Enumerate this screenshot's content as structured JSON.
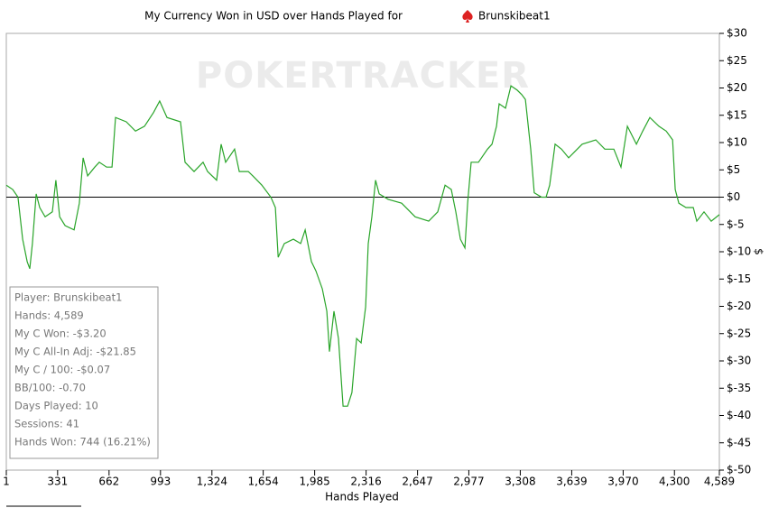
{
  "chart_data": {
    "type": "line",
    "title": "My Currency Won in USD over Hands Played for",
    "title_name": "Brunskibeat1",
    "watermark": "POKERTRACKER",
    "x_label": "Hands Played",
    "y_label": "$",
    "color": "#2aa52a",
    "zero_line": true,
    "xlim": [
      1,
      4589
    ],
    "xticks": [
      1,
      331,
      662,
      993,
      {
        "value": 1324,
        "label": "1,324"
      },
      {
        "value": 1654,
        "label": "1,654"
      },
      {
        "value": 1985,
        "label": "1,985"
      },
      {
        "value": 2316,
        "label": "2,316"
      },
      {
        "value": 2647,
        "label": "2,647"
      },
      {
        "value": 2977,
        "label": "2,977"
      },
      {
        "value": 3308,
        "label": "3,308"
      },
      {
        "value": 3639,
        "label": "3,639"
      },
      {
        "value": 3970,
        "label": "3,970"
      },
      {
        "value": 4300,
        "label": "4,300"
      },
      {
        "value": 4589,
        "label": "4,589"
      }
    ],
    "ylim": [
      -50,
      30
    ],
    "yticks": [
      {
        "value": 30,
        "label": "$30"
      },
      {
        "value": 25,
        "label": "$25"
      },
      {
        "value": 20,
        "label": "$20"
      },
      {
        "value": 15,
        "label": "$15"
      },
      {
        "value": 10,
        "label": "$10"
      },
      {
        "value": 5,
        "label": "$5"
      },
      {
        "value": 0,
        "label": "$0"
      },
      {
        "value": -5,
        "label": "$-5"
      },
      {
        "value": -10,
        "label": "$-10"
      },
      {
        "value": -15,
        "label": "$-15"
      },
      {
        "value": -20,
        "label": "$-20"
      },
      {
        "value": -25,
        "label": "$-25"
      },
      {
        "value": -30,
        "label": "$-30"
      },
      {
        "value": -35,
        "label": "$-35"
      },
      {
        "value": -40,
        "label": "$-40"
      },
      {
        "value": -45,
        "label": "$-45"
      },
      {
        "value": -50,
        "label": "$-50"
      }
    ],
    "x": [
      1,
      42,
      76,
      106,
      135,
      152,
      169,
      193,
      216,
      251,
      297,
      320,
      344,
      379,
      437,
      471,
      495,
      524,
      570,
      599,
      646,
      681,
      704,
      773,
      832,
      890,
      948,
      988,
      1035,
      1122,
      1151,
      1209,
      1267,
      1296,
      1354,
      1383,
      1412,
      1470,
      1500,
      1558,
      1587,
      1645,
      1703,
      1732,
      1750,
      1790,
      1848,
      1895,
      1924,
      1964,
      1993,
      2034,
      2063,
      2080,
      2109,
      2138,
      2168,
      2197,
      2225,
      2255,
      2284,
      2313,
      2330,
      2353,
      2377,
      2400,
      2458,
      2545,
      2632,
      2719,
      2777,
      2824,
      2864,
      2893,
      2923,
      2952,
      2969,
      2992,
      3039,
      3097,
      3126,
      3155,
      3172,
      3213,
      3248,
      3288,
      3317,
      3341,
      3375,
      3398,
      3445,
      3474,
      3497,
      3532,
      3573,
      3619,
      3706,
      3794,
      3852,
      3910,
      3956,
      3997,
      4055,
      4096,
      4142,
      4200,
      4247,
      4288,
      4305,
      4328,
      4374,
      4421,
      4444,
      4490,
      4537,
      4589
    ],
    "series": [
      {
        "name": "Brunskibeat1",
        "color": "#2aa52a",
        "values": [
          2.2,
          1.4,
          0,
          -7.7,
          -11.8,
          -13.1,
          -8.5,
          0.6,
          -1.9,
          -3.6,
          -2.7,
          3.1,
          -3.6,
          -5.2,
          -6,
          -1.1,
          7.2,
          3.9,
          5.5,
          6.4,
          5.5,
          5.5,
          14.6,
          13.8,
          12.1,
          13,
          15.5,
          17.6,
          14.6,
          13.8,
          6.4,
          4.7,
          6.4,
          4.7,
          3.1,
          9.7,
          6.4,
          8.8,
          4.7,
          4.7,
          3.9,
          2.2,
          0,
          -1.9,
          -11,
          -8.5,
          -7.7,
          -8.5,
          -6,
          -11.8,
          -13.5,
          -16.8,
          -20.9,
          -28.3,
          -20.9,
          -25.9,
          -38.3,
          -38.3,
          -35.8,
          -25.9,
          -26.7,
          -20.1,
          -8.5,
          -3.6,
          3.1,
          0.6,
          -0.4,
          -1.1,
          -3.6,
          -4.4,
          -2.7,
          2.2,
          1.4,
          -2.7,
          -7.7,
          -9.3,
          -1.1,
          6.4,
          6.4,
          8.8,
          9.7,
          13,
          17.1,
          16.3,
          20.4,
          19.6,
          18.8,
          17.9,
          8.8,
          0.8,
          0,
          0,
          2.2,
          9.7,
          8.8,
          7.2,
          9.7,
          10.5,
          8.8,
          8.8,
          5.5,
          13,
          9.7,
          12.1,
          14.6,
          13,
          12.1,
          10.5,
          1.4,
          -1.1,
          -1.9,
          -1.9,
          -4.4,
          -2.7,
          -4.4,
          -3.2
        ]
      }
    ],
    "stats_box": [
      "Player: Brunskibeat1",
      "Hands: 4,589",
      "My C Won: -$3.20",
      "My C All-In Adj: -$21.85",
      "My C / 100: -$0.07",
      "BB/100: -0.70",
      "Days Played: 10",
      "Sessions: 41",
      "Hands Won: 744 (16.21%)"
    ]
  }
}
